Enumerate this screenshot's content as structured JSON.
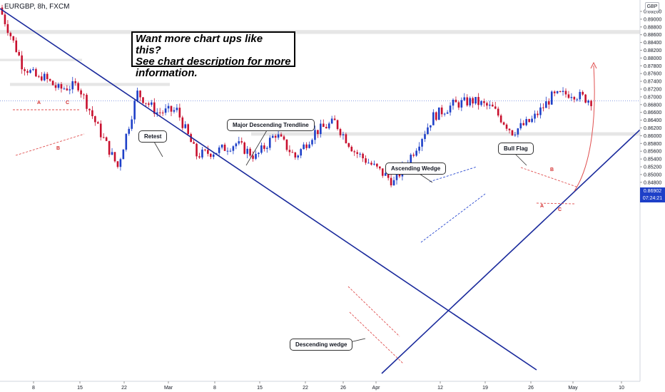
{
  "header": {
    "symbol": "EURGBP, 8h, FXCM",
    "currency": "GBP"
  },
  "note": {
    "line1": "Want more chart ups like this?",
    "line2": "See chart description for more",
    "line3": "information."
  },
  "callouts": {
    "retest": "Retest",
    "major_trendline": "Major Descending Trendline",
    "ascending_wedge": "Ascending Wedge",
    "bull_flag": "Bull Flag",
    "descending_wedge": "Descending wedge"
  },
  "pattern_labels": {
    "a1": "A",
    "b1": "B",
    "c1": "C",
    "a2": "A",
    "b2": "B",
    "c2": "C"
  },
  "price_label": {
    "price": "0.86902",
    "countdown": "07:24:21"
  },
  "colors": {
    "up": "#1e40c8",
    "down": "#c8102e",
    "trendline": "#1a2a9c",
    "pattern": "#e05050",
    "zone": "#e6e6e6"
  },
  "chart_data": {
    "type": "candlestick",
    "symbol": "EURGBP",
    "timeframe": "8h",
    "ylim": [
      0.8452,
      0.8935
    ],
    "y_ticks": [
      0.846,
      0.848,
      0.85,
      0.852,
      0.854,
      0.856,
      0.858,
      0.86,
      0.862,
      0.864,
      0.866,
      0.868,
      0.87,
      0.872,
      0.874,
      0.876,
      0.878,
      0.88,
      0.882,
      0.884,
      0.886,
      0.888,
      0.89,
      0.892
    ],
    "x_ticks": [
      "8",
      "15",
      "22",
      "Mar",
      "8",
      "15",
      "22",
      "26",
      "Apr",
      "12",
      "19",
      "26",
      "May",
      "10"
    ],
    "last_price": 0.86902,
    "trend_anchors": [
      [
        0.893,
        0.8805
      ],
      [
        0.879,
        0.8745
      ],
      [
        0.876,
        0.872
      ],
      [
        0.872,
        0.873
      ],
      [
        0.873,
        0.862
      ],
      [
        0.862,
        0.852
      ],
      [
        0.852,
        0.871
      ],
      [
        0.871,
        0.866
      ],
      [
        0.866,
        0.8665
      ],
      [
        0.8665,
        0.855
      ],
      [
        0.855,
        0.856
      ],
      [
        0.856,
        0.858
      ],
      [
        0.858,
        0.8545
      ],
      [
        0.8545,
        0.8605
      ],
      [
        0.8605,
        0.8545
      ],
      [
        0.8545,
        0.861
      ],
      [
        0.861,
        0.8635
      ],
      [
        0.8635,
        0.856
      ],
      [
        0.856,
        0.852
      ],
      [
        0.852,
        0.848
      ],
      [
        0.848,
        0.856
      ],
      [
        0.856,
        0.865
      ],
      [
        0.865,
        0.868
      ],
      [
        0.868,
        0.869
      ],
      [
        0.869,
        0.867
      ],
      [
        0.867,
        0.861
      ],
      [
        0.861,
        0.864
      ],
      [
        0.864,
        0.87
      ],
      [
        0.87,
        0.871
      ],
      [
        0.871,
        0.869
      ]
    ],
    "zones": [
      {
        "from": 0.8862,
        "to": 0.8872
      },
      {
        "from": 0.8792,
        "to": 0.8798
      },
      {
        "from": 0.8728,
        "to": 0.8736
      },
      {
        "from": 0.86,
        "to": 0.8609
      }
    ]
  }
}
